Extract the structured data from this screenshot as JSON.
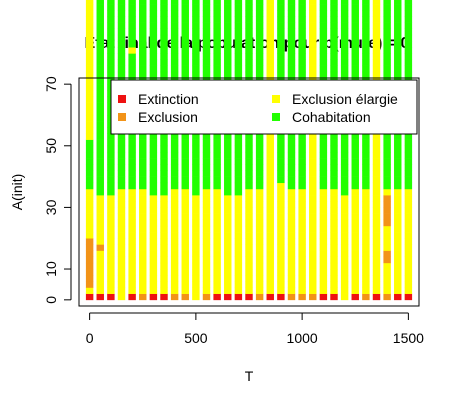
{
  "chart_data": {
    "type": "heatmap",
    "title": "Etat final de la population pour p(mute) = 0",
    "xlabel": "T",
    "ylabel": "A(init)",
    "xlim": [
      -50,
      1550
    ],
    "ylim": [
      -2,
      72
    ],
    "x_ticks": [
      0,
      500,
      1000,
      1500
    ],
    "x_tick_labels": [
      "0",
      "500",
      "1000",
      "1500"
    ],
    "y_ticks": [
      0,
      10,
      30,
      50,
      70
    ],
    "y_tick_labels": [
      "0",
      "10",
      "30",
      "50",
      "70"
    ],
    "grid": false,
    "legend_placement": "top-right",
    "legend": [
      {
        "label": "Extinction",
        "color": "#ee1111"
      },
      {
        "label": "Exclusion",
        "color": "#f29318"
      },
      {
        "label": "Exclusion élargie",
        "color": "#ffff00"
      },
      {
        "label": "Cohabitation",
        "color": "#22ff00"
      }
    ],
    "state_colors": {
      "E": "#ee1111",
      "X": "#f29318",
      "L": "#ffff00",
      "C": "#22ff00"
    },
    "cell_height": 2,
    "y_start": 0,
    "columns": [
      {
        "x": 0,
        "cells": "ELXXXXXXXXLLLLLLLLCCCCCCCCLLLLLLLLLLLLLLLLLLLLLLLLLLL"
      },
      {
        "x": 50,
        "cells": "ELLLLLLLXLLLLLLLLCCCCCCCCCCCCCCCCCCCCCCCCCCCCCCCCCCCC"
      },
      {
        "x": 100,
        "cells": "ELLLLLLLLLLLLLLLLCCCCCCCCCCCCCCCCCCCCCCCCCCCCCCCCCCCC"
      },
      {
        "x": 150,
        "cells": "LLLLLLLLLLLLLLLLLLCCCCCCCCCCCCCCCCCCCCCCCCCCCCCCCCCCC"
      },
      {
        "x": 200,
        "cells": "ELLLLLLLLLLLLLLLLLCCCCCCCCCCCCCCCCCCCCCCLCCCCCCCCCCCC"
      },
      {
        "x": 250,
        "cells": "XLLLLLLLLLLLLLLLLLCCCCCCCCCCCCCCCCCCCCCCCCCCCCCCCCLLL"
      },
      {
        "x": 300,
        "cells": "ELLLLLLLLLLLLLLLLCCCCCCCCCCCCCCCCCCCCCCCCCCCCCCCCCCCC"
      },
      {
        "x": 350,
        "cells": "ELLLLLLLLLLLLLLLLCCCCCCCCCCCCCCCCCCCCCCCCCCCCCCCCCCCC"
      },
      {
        "x": 400,
        "cells": "XLLLLLLLLLLLLLLLLLCCCCCCCCCCCCCCCCCCCCCCCCCCCCCCCCCCC"
      },
      {
        "x": 450,
        "cells": "XLLLLLLLLLLLLLLLLLCCCCCCCCCCCCCCCCCCCCCCCCCCCCCCCCCCC"
      },
      {
        "x": 500,
        "cells": "LLLLLLLLLLLLLLLLLCCCCCCCCCCCCCCCCCCCCCCCCCCCCCCCCCCCC"
      },
      {
        "x": 550,
        "cells": "XLLLLLLLLLLLLLLLLLCCCCCCCCCCCCCCCCCCCCCCCCCCCCCCCCCCC"
      },
      {
        "x": 600,
        "cells": "ELLLLLLLLLLLLLLLLLCCCCCCCCCCCCCCCCCCCCCCCCCCCCCCCCCLL"
      },
      {
        "x": 650,
        "cells": "ELLLLLLLLLLLLLLLLCCCCCCCCCCCCCCCCCCCCCCCCCCCCCCCCCCCC"
      },
      {
        "x": 700,
        "cells": "ELLLLLLLLLLLLLLLLCCCCCCCCCCCCCCCCCCCCCCCCCCCCCCCCCCCC"
      },
      {
        "x": 750,
        "cells": "ELLLLLLLLLLLLLLLLLCCCCCCCCCCCCCCCCCCCCCCCCCCCCCCCCCLL"
      },
      {
        "x": 800,
        "cells": "XLLLLLLLLLLLLLLLLLCCCCCCCCCCCCCCCCCCCCCCCCCCCCCCCCCLL"
      },
      {
        "x": 850,
        "cells": "ELLLLLLLLLLLLLLLLLLLLLLLLLLLLLLLLLLLLLLLLLLLLLLLLLLLL"
      },
      {
        "x": 900,
        "cells": "ELLLLLLLLLLLLLLLLLLCCCCCCCCCCCCCCCCCCCCCCCCCCCCCCCCCL"
      },
      {
        "x": 950,
        "cells": "XLLLLLLLLLLLLLLLLLCCCCCCCCCCCCCCCCCCCCCCCCCCCCCCCCCLL"
      },
      {
        "x": 1000,
        "cells": "XLLLLLLLLLLLLLLLLLCCCCCCCCCCCCCCCCCCCCCCCCCCCCCCCCCLL"
      },
      {
        "x": 1050,
        "cells": "XLLLLLLLLLLLLLLLLLLLLLLLLLLLLLLLLLLLLLLLLLLLLLLLLLXXL"
      },
      {
        "x": 1100,
        "cells": "ELLLLLLLLLLLLLLLLLCCCCCCCCCCCCCCCCCCCCCCCCCCCCCCCCCCC"
      },
      {
        "x": 1150,
        "cells": "ELLLLLLLLLLLLLLLLLCCCCCCCCCCCCCCCCCCCCCCCCCCCCCCCCCLL"
      },
      {
        "x": 1200,
        "cells": "LLLLLLLLLLLLLLLLLCCCCCCCCCCCCCCCCCCCCCCCCCCCCCCCCCCCC"
      },
      {
        "x": 1250,
        "cells": "ELLLLLLLLLLLLLLLLLCCCCCCCCCCCCCCCCCCCCCCCCCCCCCCCCCCC"
      },
      {
        "x": 1300,
        "cells": "XLLLLLLLLLLLLLLLLLCCCCCCCCCCCCCCCCCCCCCCCCCCCCCCCCCLL"
      },
      {
        "x": 1350,
        "cells": "ELLLLLLLLLLLLLLLLLLLLLLLLLLLLLLLLLLLLLLLLLLLLLLLLLLLL"
      },
      {
        "x": 1400,
        "cells": "XLLLLLXXLLLLXXXXXLCCCCCCCCCCCCCCCCCCCCCCCCCCCCCCCCCCC"
      },
      {
        "x": 1450,
        "cells": "ELLLLLLLLLLLLLLLLLCCCCCCCCCCCCCCCCCCCCCCCCCCCCCCCCCLL"
      },
      {
        "x": 1500,
        "cells": "ELLLLLLLLLLLLLLLLLCCCCCCCCCCCCCCCCCCCCCCCCCCCCCCCCCLL"
      }
    ]
  }
}
